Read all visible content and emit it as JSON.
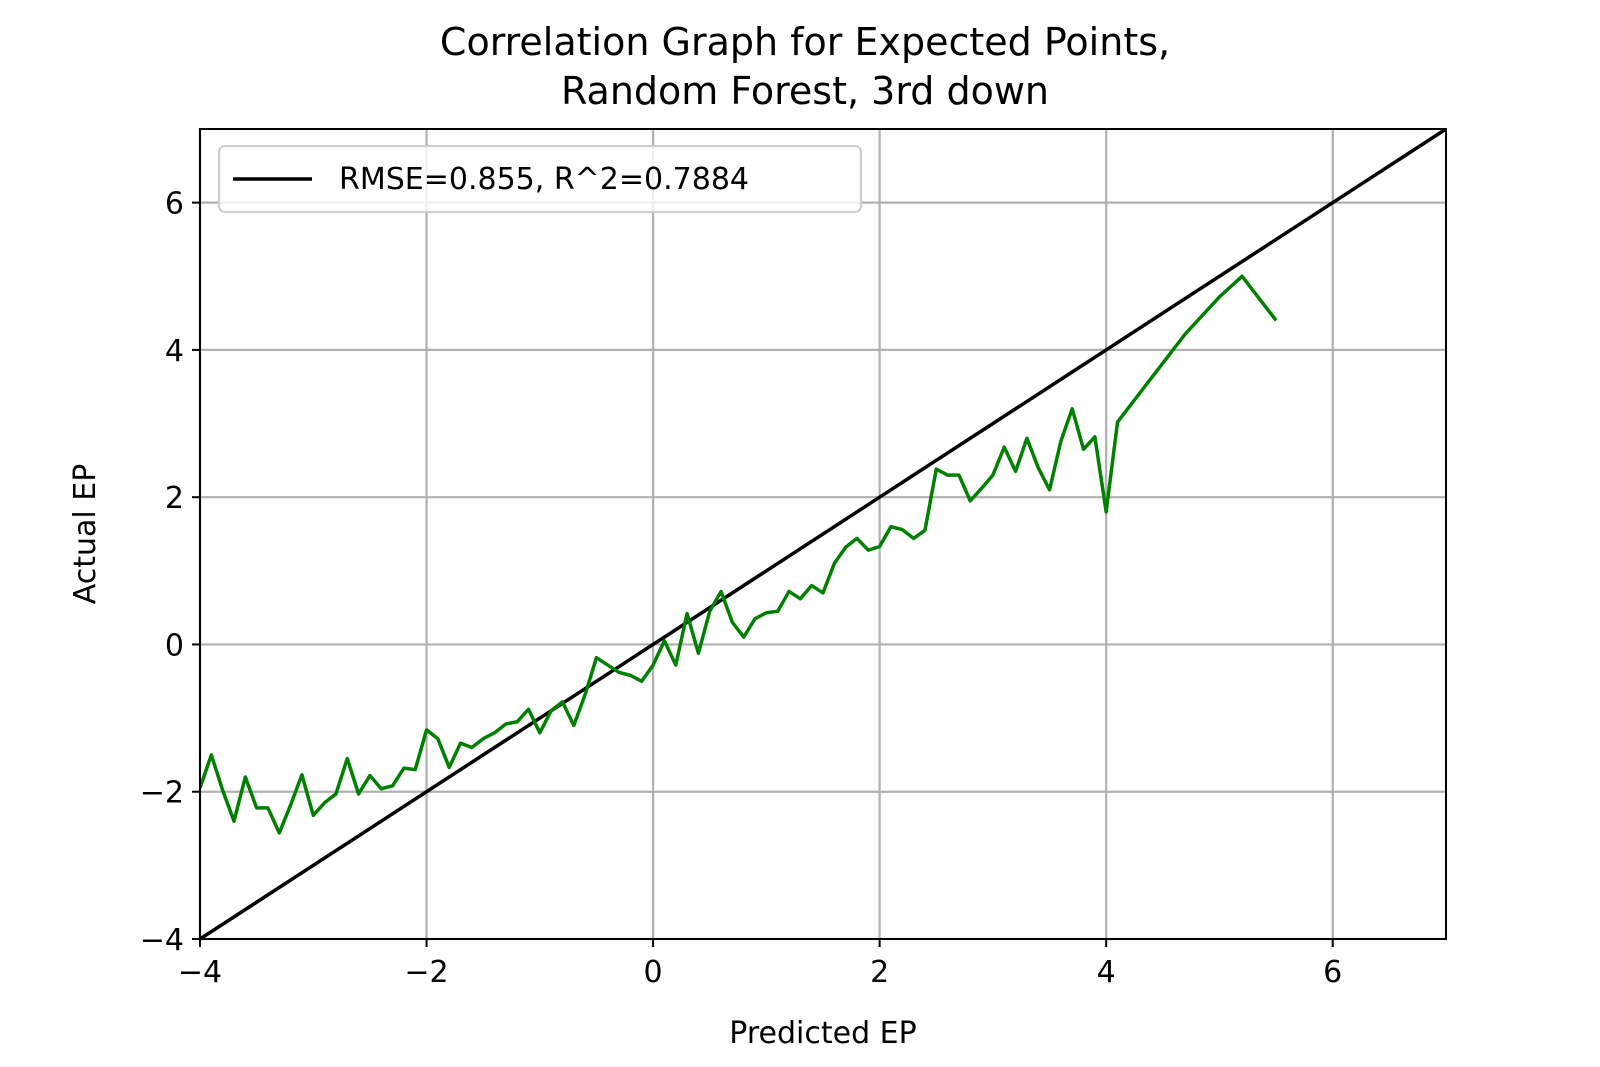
{
  "chart_data": {
    "type": "line",
    "title": [
      "Correlation Graph for Expected Points,",
      "Random Forest, 3rd down"
    ],
    "xlabel": "Predicted EP",
    "ylabel": "Actual EP",
    "xlim": [
      -4,
      7
    ],
    "ylim": [
      -4,
      7
    ],
    "xticks": [
      -4,
      -2,
      0,
      2,
      4,
      6
    ],
    "yticks": [
      -4,
      -2,
      0,
      2,
      4,
      6
    ],
    "xtick_labels": [
      "−4",
      "−2",
      "0",
      "2",
      "4",
      "6"
    ],
    "ytick_labels": [
      "−4",
      "−2",
      "0",
      "2",
      "4",
      "6"
    ],
    "grid": true,
    "legend": {
      "placement": "upper-left",
      "entries": [
        "RMSE=0.855, R^2=0.7884"
      ]
    },
    "series": [
      {
        "name": "RMSE=0.855, R^2=0.7884",
        "color": "#000000",
        "x": [
          -4,
          7
        ],
        "y": [
          -4,
          7
        ]
      },
      {
        "color": "#008000",
        "x": [
          -4.0,
          -3.9,
          -3.8,
          -3.7,
          -3.6,
          -3.5,
          -3.4,
          -3.3,
          -3.2,
          -3.1,
          -3.0,
          -2.9,
          -2.8,
          -2.7,
          -2.6,
          -2.5,
          -2.4,
          -2.3,
          -2.2,
          -2.1,
          -2.0,
          -1.9,
          -1.8,
          -1.7,
          -1.6,
          -1.5,
          -1.4,
          -1.3,
          -1.2,
          -1.1,
          -1.0,
          -0.9,
          -0.8,
          -0.7,
          -0.6,
          -0.5,
          -0.4,
          -0.3,
          -0.2,
          -0.1,
          0.0,
          0.1,
          0.2,
          0.3,
          0.4,
          0.5,
          0.6,
          0.7,
          0.8,
          0.9,
          1.0,
          1.1,
          1.2,
          1.3,
          1.4,
          1.5,
          1.6,
          1.7,
          1.8,
          1.9,
          2.0,
          2.1,
          2.2,
          2.3,
          2.4,
          2.5,
          2.6,
          2.7,
          2.8,
          2.9,
          3.0,
          3.1,
          3.2,
          3.3,
          3.4,
          3.5,
          3.6,
          3.7,
          3.8,
          3.9,
          4.0,
          4.1,
          4.7,
          5.0,
          5.2,
          5.5
        ],
        "y": [
          -1.95,
          -1.5,
          -1.98,
          -2.4,
          -1.8,
          -2.22,
          -2.22,
          -2.56,
          -2.18,
          -1.77,
          -2.32,
          -2.15,
          -2.03,
          -1.55,
          -2.03,
          -1.78,
          -1.96,
          -1.92,
          -1.68,
          -1.7,
          -1.16,
          -1.28,
          -1.67,
          -1.34,
          -1.4,
          -1.28,
          -1.2,
          -1.08,
          -1.05,
          -0.88,
          -1.2,
          -0.9,
          -0.78,
          -1.1,
          -0.68,
          -0.18,
          -0.28,
          -0.38,
          -0.42,
          -0.5,
          -0.28,
          0.05,
          -0.28,
          0.42,
          -0.12,
          0.45,
          0.72,
          0.3,
          0.1,
          0.35,
          0.43,
          0.45,
          0.72,
          0.62,
          0.8,
          0.7,
          1.1,
          1.32,
          1.44,
          1.28,
          1.33,
          1.6,
          1.56,
          1.44,
          1.55,
          2.38,
          2.3,
          2.3,
          1.95,
          2.12,
          2.3,
          2.68,
          2.35,
          2.8,
          2.4,
          2.1,
          2.76,
          3.2,
          2.65,
          2.82,
          1.8,
          3.02,
          4.22,
          4.72,
          5.0,
          4.4
        ]
      }
    ]
  }
}
